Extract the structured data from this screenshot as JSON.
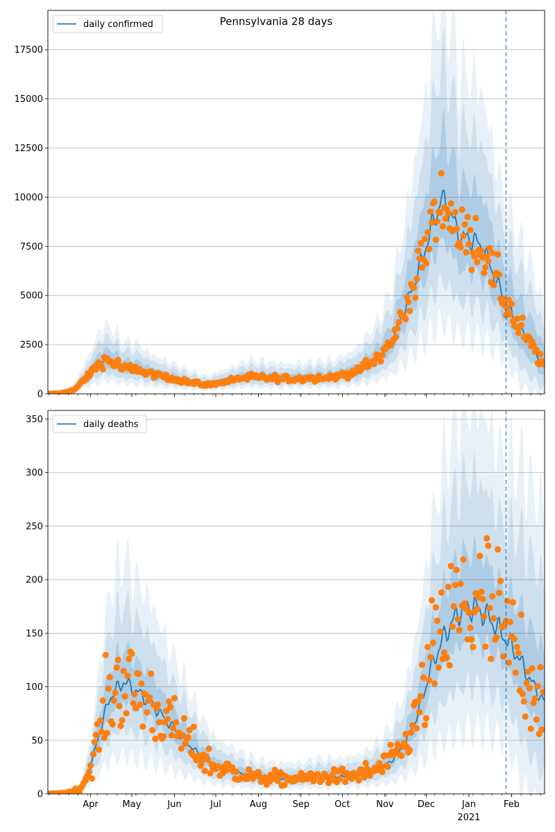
{
  "chart_data": [
    {
      "type": "line",
      "title": "Pennsylvania 28 days",
      "legend": {
        "label": "daily confirmed",
        "placement": "top-left"
      },
      "y_ticks": [
        0,
        2500,
        5000,
        7500,
        10000,
        12500,
        15000,
        17500
      ],
      "ylim": [
        0,
        19500
      ],
      "grid": "horizontal",
      "colors": {
        "line": "#1f77b4",
        "points": "#ff7f0e",
        "band": "#1f77b4"
      },
      "anchors": [
        [
          "2020-03-01",
          0
        ],
        [
          "2020-03-10",
          20
        ],
        [
          "2020-03-20",
          200
        ],
        [
          "2020-03-30",
          900
        ],
        [
          "2020-04-08",
          1600
        ],
        [
          "2020-04-15",
          1700
        ],
        [
          "2020-04-25",
          1300
        ],
        [
          "2020-05-05",
          1250
        ],
        [
          "2020-05-15",
          1000
        ],
        [
          "2020-06-01",
          750
        ],
        [
          "2020-06-15",
          550
        ],
        [
          "2020-06-25",
          450
        ],
        [
          "2020-07-10",
          650
        ],
        [
          "2020-07-25",
          850
        ],
        [
          "2020-08-10",
          800
        ],
        [
          "2020-08-25",
          750
        ],
        [
          "2020-09-10",
          800
        ],
        [
          "2020-09-25",
          850
        ],
        [
          "2020-10-10",
          1100
        ],
        [
          "2020-10-25",
          1700
        ],
        [
          "2020-11-05",
          2500
        ],
        [
          "2020-11-15",
          4200
        ],
        [
          "2020-11-25",
          6200
        ],
        [
          "2020-12-05",
          8500
        ],
        [
          "2020-12-12",
          9900
        ],
        [
          "2020-12-18",
          9300
        ],
        [
          "2020-12-25",
          8000
        ],
        [
          "2021-01-05",
          7800
        ],
        [
          "2021-01-12",
          7300
        ],
        [
          "2021-01-20",
          5900
        ],
        [
          "2021-01-27",
          4800
        ],
        [
          "2021-02-05",
          3500
        ],
        [
          "2021-02-15",
          2500
        ],
        [
          "2021-02-25",
          1400
        ]
      ]
    },
    {
      "type": "line",
      "legend": {
        "label": "daily deaths",
        "placement": "top-left"
      },
      "y_ticks": [
        0,
        50,
        100,
        150,
        200,
        250,
        300,
        350
      ],
      "ylim": [
        0,
        358
      ],
      "grid": "horizontal",
      "colors": {
        "line": "#1f77b4",
        "points": "#ff7f0e",
        "band": "#1f77b4"
      },
      "anchors": [
        [
          "2020-03-01",
          0
        ],
        [
          "2020-03-15",
          1
        ],
        [
          "2020-03-25",
          5
        ],
        [
          "2020-04-01",
          25
        ],
        [
          "2020-04-08",
          60
        ],
        [
          "2020-04-15",
          90
        ],
        [
          "2020-04-25",
          105
        ],
        [
          "2020-05-05",
          95
        ],
        [
          "2020-05-15",
          85
        ],
        [
          "2020-05-25",
          70
        ],
        [
          "2020-06-05",
          55
        ],
        [
          "2020-06-20",
          35
        ],
        [
          "2020-07-01",
          25
        ],
        [
          "2020-07-15",
          20
        ],
        [
          "2020-08-01",
          15
        ],
        [
          "2020-08-15",
          14
        ],
        [
          "2020-09-01",
          14
        ],
        [
          "2020-09-15",
          16
        ],
        [
          "2020-10-01",
          16
        ],
        [
          "2020-10-15",
          18
        ],
        [
          "2020-10-25",
          22
        ],
        [
          "2020-11-05",
          30
        ],
        [
          "2020-11-15",
          45
        ],
        [
          "2020-11-25",
          75
        ],
        [
          "2020-12-05",
          120
        ],
        [
          "2020-12-15",
          150
        ],
        [
          "2020-12-25",
          170
        ],
        [
          "2021-01-05",
          175
        ],
        [
          "2021-01-15",
          165
        ],
        [
          "2021-01-25",
          150
        ],
        [
          "2021-02-05",
          130
        ],
        [
          "2021-02-15",
          105
        ],
        [
          "2021-02-25",
          85
        ]
      ]
    }
  ],
  "x_axis": {
    "range": [
      "2020-03-01",
      "2021-02-25"
    ],
    "ticks": [
      {
        "date": "2020-04-01",
        "label": "Apr"
      },
      {
        "date": "2020-05-01",
        "label": "May"
      },
      {
        "date": "2020-06-01",
        "label": "Jun"
      },
      {
        "date": "2020-07-01",
        "label": "Jul"
      },
      {
        "date": "2020-08-01",
        "label": "Aug"
      },
      {
        "date": "2020-09-01",
        "label": "Sep"
      },
      {
        "date": "2020-10-01",
        "label": "Oct"
      },
      {
        "date": "2020-11-01",
        "label": "Nov"
      },
      {
        "date": "2020-12-01",
        "label": "Dec"
      },
      {
        "date": "2021-01-01",
        "label": "Jan"
      },
      {
        "date": "2021-02-01",
        "label": "Feb"
      }
    ],
    "year_label": "2021",
    "year_label_date": "2021-01-01",
    "vertical_marker": "2021-01-28"
  }
}
